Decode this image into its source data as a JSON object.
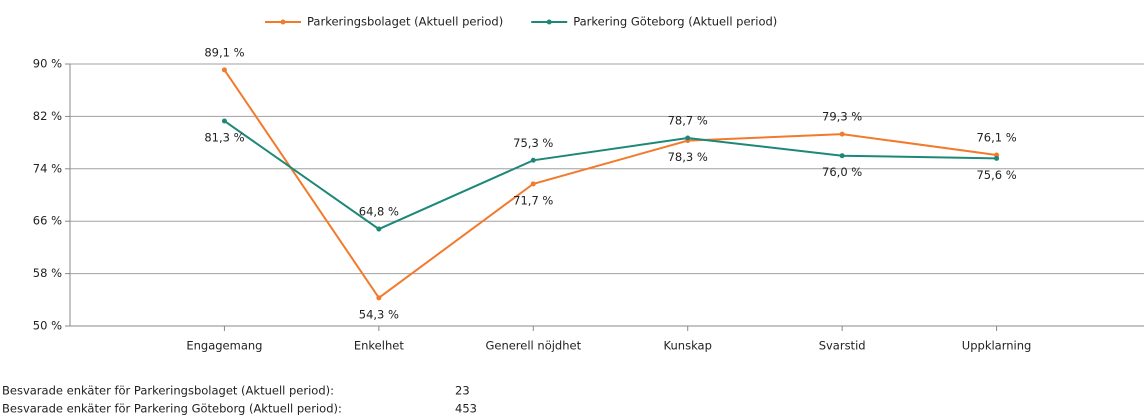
{
  "chart_data": {
    "type": "line",
    "categories": [
      "Engagemang",
      "Enkelhet",
      "Generell nöjdhet",
      "Kunskap",
      "Svarstid",
      "Uppklarning"
    ],
    "series": [
      {
        "name": "Parkeringsbolaget (Aktuell period)",
        "color": "#f27a2c",
        "values": [
          89.1,
          54.3,
          71.7,
          78.3,
          79.3,
          76.1
        ],
        "value_labels": [
          "89,1 %",
          "54,3 %",
          "71,7 %",
          "78,3 %",
          "79,3 %",
          "76,1 %"
        ]
      },
      {
        "name": "Parkering Göteborg (Aktuell period)",
        "color": "#1e8878",
        "values": [
          81.3,
          64.8,
          75.3,
          78.7,
          76.0,
          75.6
        ],
        "value_labels": [
          "81,3 %",
          "64,8 %",
          "75,3 %",
          "78,7 %",
          "76,0 %",
          "75,6 %"
        ]
      }
    ],
    "ylim": [
      50,
      90
    ],
    "yticks": [
      {
        "value": 50,
        "label": "50 %"
      },
      {
        "value": 58,
        "label": "58 %"
      },
      {
        "value": 66,
        "label": "66 %"
      },
      {
        "value": 74,
        "label": "74 %"
      },
      {
        "value": 82,
        "label": "82 %"
      },
      {
        "value": 90,
        "label": "90 %"
      }
    ],
    "grid": true,
    "legend": "top"
  },
  "footer": [
    {
      "label": "Besvarade enkäter för Parkeringsbolaget (Aktuell period):",
      "count": 23
    },
    {
      "label": "Besvarade enkäter för Parkering Göteborg (Aktuell period):",
      "count": 453
    }
  ]
}
